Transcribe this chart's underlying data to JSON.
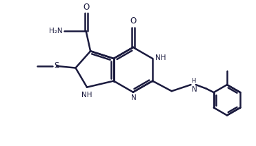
{
  "bg_color": "#ffffff",
  "line_color": "#1a1a3e",
  "line_width": 1.8,
  "figsize": [
    3.71,
    2.12
  ],
  "dpi": 100,
  "font_size": 7.5,
  "xlim": [
    0,
    10
  ],
  "ylim": [
    0,
    5.4
  ]
}
